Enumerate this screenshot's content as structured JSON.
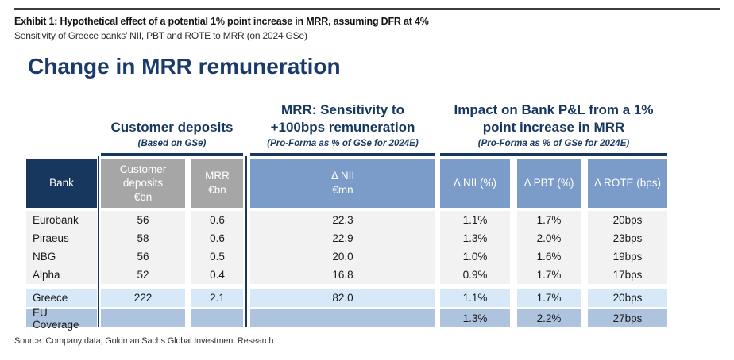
{
  "exhibit": {
    "title": "Exhibit 1: Hypothetical effect of a potential 1% point increase in MRR, assuming DFR at 4%",
    "subtitle": "Sensitivity of Greece banks’ NII, PBT and ROTE to MRR (on 2024 GSe)"
  },
  "main_title": "Change in MRR remuneration",
  "groups": [
    {
      "heading": "Customer deposits",
      "subtitle": "(Based on GSe)"
    },
    {
      "heading": "MRR: Sensitivity to\n+100bps remuneration",
      "subtitle": "(Pro-Forma as % of GSe for 2024E)"
    },
    {
      "heading": "Impact on Bank P&L from a 1%\npoint increase in MRR",
      "subtitle": "(Pro-Forma as % of GSe for 2024E)"
    }
  ],
  "table": {
    "headers": {
      "bank": "Bank",
      "customer_deposits": "Customer\ndeposits\n€bn",
      "mrr": "MRR\n€bn",
      "d_nii_mn": "Δ NII\n€mn",
      "d_nii_pct": "Δ NII (%)",
      "d_pbt_pct": "Δ PBT (%)",
      "d_rote_bps": "Δ ROTE (bps)"
    },
    "rows": [
      {
        "bank": "Eurobank",
        "deposits": "56",
        "mrr": "0.6",
        "d_nii_mn": "22.3",
        "d_nii_pct": "1.1%",
        "d_pbt_pct": "1.7%",
        "d_rote": "20bps"
      },
      {
        "bank": "Piraeus",
        "deposits": "58",
        "mrr": "0.6",
        "d_nii_mn": "22.9",
        "d_nii_pct": "1.3%",
        "d_pbt_pct": "2.0%",
        "d_rote": "23bps"
      },
      {
        "bank": "NBG",
        "deposits": "56",
        "mrr": "0.5",
        "d_nii_mn": "20.0",
        "d_nii_pct": "1.0%",
        "d_pbt_pct": "1.6%",
        "d_rote": "19bps"
      },
      {
        "bank": "Alpha",
        "deposits": "52",
        "mrr": "0.4",
        "d_nii_mn": "16.8",
        "d_nii_pct": "0.9%",
        "d_pbt_pct": "1.7%",
        "d_rote": "17bps"
      }
    ],
    "summary_rows": [
      {
        "bank": "Greece",
        "deposits": "222",
        "mrr": "2.1",
        "d_nii_mn": "82.0",
        "d_nii_pct": "1.1%",
        "d_pbt_pct": "1.7%",
        "d_rote": "20bps"
      },
      {
        "bank": "EU Coverage",
        "deposits": "",
        "mrr": "",
        "d_nii_mn": "",
        "d_nii_pct": "1.3%",
        "d_pbt_pct": "2.2%",
        "d_rote": "27bps"
      }
    ]
  },
  "source": "Source: Company data, Goldman Sachs Global Investment Research",
  "colors": {
    "navy": "#17375e",
    "title_navy": "#1a3a6b",
    "gray_header_bg": "#a6a6a6",
    "blue_header_bg": "#7b9cc9",
    "data_row_bg": "#f2f2f2",
    "greece_row_bg": "#d7e9f9",
    "eu_row_bg": "#aec3dd"
  }
}
